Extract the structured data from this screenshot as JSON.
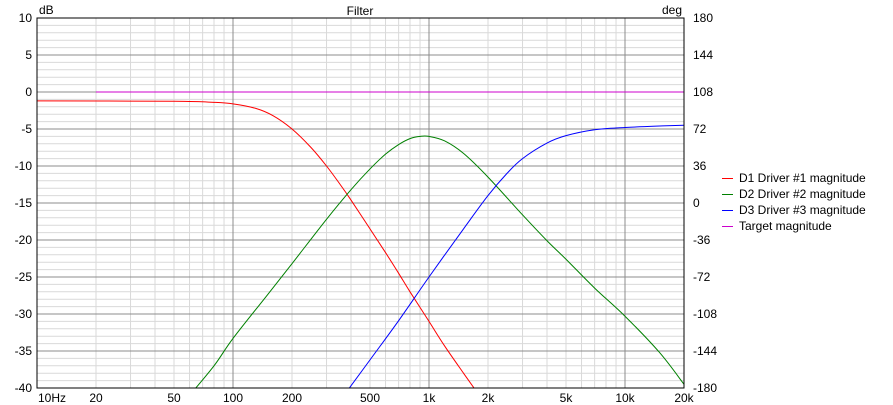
{
  "chart_data": {
    "type": "line",
    "title": "Filter",
    "y_unit_left": "dB",
    "y_unit_right": "deg",
    "x_scale": "log",
    "xlim": [
      10,
      20000
    ],
    "ylim": [
      -40,
      10
    ],
    "y2lim": [
      -180,
      180
    ],
    "grid": true,
    "legend_position": "right",
    "x_ticks": [
      {
        "value": 10,
        "label": "10Hz"
      },
      {
        "value": 20,
        "label": "20"
      },
      {
        "value": 50,
        "label": "50"
      },
      {
        "value": 100,
        "label": "100"
      },
      {
        "value": 200,
        "label": "200"
      },
      {
        "value": 500,
        "label": "500"
      },
      {
        "value": 1000,
        "label": "1k"
      },
      {
        "value": 2000,
        "label": "2k"
      },
      {
        "value": 5000,
        "label": "5k"
      },
      {
        "value": 10000,
        "label": "10k"
      },
      {
        "value": 20000,
        "label": "20k"
      }
    ],
    "y_ticks": [
      10,
      5,
      0,
      -5,
      -10,
      -15,
      -20,
      -25,
      -30,
      -35,
      -40
    ],
    "y2_ticks": [
      180,
      144,
      108,
      72,
      36,
      0,
      -36,
      -72,
      -108,
      -144,
      -180
    ],
    "series": [
      {
        "name": "D1 Driver #1 magnitude",
        "color": "#ff0000",
        "points": [
          [
            10,
            -1.2
          ],
          [
            50,
            -1.25
          ],
          [
            80,
            -1.4
          ],
          [
            100,
            -1.6
          ],
          [
            130,
            -2.2
          ],
          [
            160,
            -3.2
          ],
          [
            200,
            -5.0
          ],
          [
            250,
            -7.5
          ],
          [
            300,
            -10.0
          ],
          [
            350,
            -12.4
          ],
          [
            400,
            -14.6
          ],
          [
            500,
            -18.5
          ],
          [
            600,
            -21.7
          ],
          [
            700,
            -24.5
          ],
          [
            800,
            -27.0
          ],
          [
            1000,
            -31.0
          ],
          [
            1200,
            -34.3
          ],
          [
            1500,
            -38.0
          ],
          [
            1750,
            -40.5
          ]
        ]
      },
      {
        "name": "D2 Driver #2 magnitude",
        "color": "#008000",
        "points": [
          [
            60,
            -41
          ],
          [
            80,
            -37
          ],
          [
            100,
            -33.3
          ],
          [
            150,
            -27.4
          ],
          [
            200,
            -23.2
          ],
          [
            300,
            -17.2
          ],
          [
            400,
            -13.2
          ],
          [
            500,
            -10.4
          ],
          [
            600,
            -8.4
          ],
          [
            700,
            -7.1
          ],
          [
            800,
            -6.3
          ],
          [
            900,
            -6.0
          ],
          [
            1000,
            -6.0
          ],
          [
            1200,
            -6.6
          ],
          [
            1500,
            -8.3
          ],
          [
            2000,
            -11.5
          ],
          [
            3000,
            -16.6
          ],
          [
            4000,
            -20.1
          ],
          [
            5000,
            -22.6
          ],
          [
            7000,
            -26.5
          ],
          [
            10000,
            -30.3
          ],
          [
            15000,
            -35.2
          ],
          [
            20000,
            -39.5
          ]
        ]
      },
      {
        "name": "D3 Driver #3 magnitude",
        "color": "#0000ff",
        "points": [
          [
            380,
            -40.5
          ],
          [
            500,
            -36.2
          ],
          [
            700,
            -30.9
          ],
          [
            1000,
            -25.0
          ],
          [
            1500,
            -18.5
          ],
          [
            2000,
            -14.0
          ],
          [
            2500,
            -11.0
          ],
          [
            3000,
            -9.0
          ],
          [
            4000,
            -6.9
          ],
          [
            5000,
            -5.9
          ],
          [
            7000,
            -5.1
          ],
          [
            10000,
            -4.8
          ],
          [
            15000,
            -4.6
          ],
          [
            20000,
            -4.5
          ]
        ]
      },
      {
        "name": "Target magnitude",
        "color": "#cc00cc",
        "points": [
          [
            20,
            0
          ],
          [
            20000,
            0
          ]
        ]
      }
    ]
  }
}
